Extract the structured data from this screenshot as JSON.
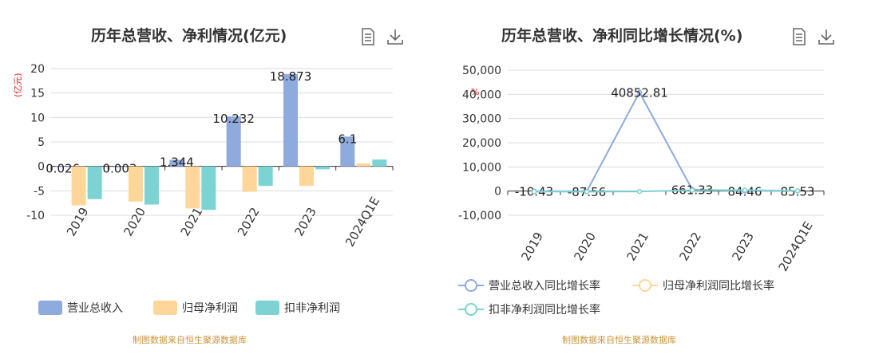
{
  "left": {
    "title": "历年总营收、净利情况(亿元)",
    "unit_label": "(亿元)",
    "source": "制图数据来自恒生聚源数据库",
    "tools": [
      "document-icon",
      "download-icon"
    ]
  },
  "right": {
    "title": "历年总营收、净利同比增长情况(%)",
    "unit_label": "%",
    "source": "制图数据来自恒生聚源数据库",
    "tools": [
      "document-icon",
      "download-icon"
    ]
  },
  "chart_data": [
    {
      "type": "bar",
      "title": "历年总营收、净利情况(亿元)",
      "ylabel": "(亿元)",
      "categories": [
        "2019",
        "2020",
        "2021",
        "2022",
        "2023",
        "2024Q1E"
      ],
      "ylim": [
        -10,
        20
      ],
      "yticks": [
        "20",
        "15",
        "10",
        "5",
        "0",
        "-5",
        "-10"
      ],
      "grid": true,
      "legend_position": "bottom",
      "series": [
        {
          "name": "营业总收入",
          "color": "#8faadc",
          "values": [
            0.026,
            0.003,
            1.344,
            10.232,
            18.873,
            6.1
          ],
          "labels": [
            "0.026",
            "0.003",
            "1.344",
            "10.232",
            "18.873",
            "6.1"
          ]
        },
        {
          "name": "归母净利润",
          "color": "#ffd699",
          "values": [
            -8.0,
            -7.2,
            -8.6,
            -5.2,
            -4.0,
            0.6
          ]
        },
        {
          "name": "扣非净利润",
          "color": "#7dd3d3",
          "values": [
            -6.7,
            -7.8,
            -8.9,
            -4.0,
            -0.6,
            1.4
          ]
        }
      ]
    },
    {
      "type": "line",
      "title": "历年总营收、净利同比增长情况(%)",
      "ylabel": "%",
      "categories": [
        "2019",
        "2020",
        "2021",
        "2022",
        "2023",
        "2024Q1E"
      ],
      "ylim": [
        -10000,
        50000
      ],
      "yticks": [
        "50,000",
        "40,000",
        "30,000",
        "20,000",
        "10,000",
        "0",
        "-10,000"
      ],
      "grid": true,
      "legend_position": "bottom",
      "series": [
        {
          "name": "营业总收入同比增长率",
          "color": "#8faadc",
          "values": [
            -10.43,
            -87.56,
            40852.81,
            661.33,
            84.46,
            85.53
          ],
          "labels": [
            "-10.43",
            "-87.56",
            "40852.81",
            "661.33",
            "84.46",
            "85.53"
          ]
        },
        {
          "name": "归母净利润同比增长率",
          "color": "#ffd699",
          "values": [
            null,
            null,
            null,
            null,
            null,
            null
          ]
        },
        {
          "name": "扣非净利润同比增长率",
          "color": "#7dd3d3",
          "values": [
            -200,
            -250,
            -150,
            350,
            400,
            150
          ]
        }
      ]
    }
  ]
}
